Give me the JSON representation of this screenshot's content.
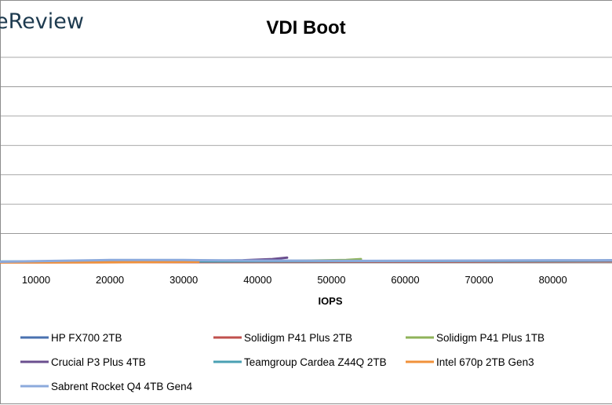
{
  "brand": "eReview",
  "chart_data": {
    "type": "line",
    "title": "VDI Boot",
    "xlabel": "IOPS",
    "ylabel": "",
    "xlim": [
      -5000,
      90000
    ],
    "x_ticks": [
      10000,
      20000,
      30000,
      40000,
      50000,
      60000,
      70000,
      80000
    ],
    "x_partial_tick": "9",
    "ylim": [
      0,
      70
    ],
    "y_gridlines": [
      10,
      20,
      30,
      40,
      50,
      60,
      70
    ],
    "grid": true,
    "legend_position": "bottom",
    "series": [
      {
        "name": "HP FX700 2TB",
        "color": "#4a72b0",
        "x": [
          -5000,
          10000,
          30000,
          50000,
          70000,
          85000,
          90000
        ],
        "y": [
          0.3,
          0.3,
          0.4,
          0.5,
          0.6,
          0.8,
          1.0
        ]
      },
      {
        "name": "Solidigm P41 Plus 2TB",
        "color": "#c0504d",
        "x": [
          -5000,
          10000,
          30000,
          50000,
          70000,
          90000
        ],
        "y": [
          0.2,
          0.2,
          0.3,
          0.4,
          0.5,
          0.6
        ]
      },
      {
        "name": "Solidigm P41 Plus 1TB",
        "color": "#8fb35a",
        "x": [
          -5000,
          10000,
          30000,
          45000,
          52000,
          54000
        ],
        "y": [
          0.3,
          0.4,
          0.5,
          0.7,
          1.0,
          1.3
        ]
      },
      {
        "name": "Crucial P3 Plus 4TB",
        "color": "#6b4f8f",
        "x": [
          -5000,
          10000,
          20000,
          30000,
          38000,
          42000,
          44000
        ],
        "y": [
          0.3,
          0.4,
          0.5,
          0.6,
          0.9,
          1.3,
          1.8
        ]
      },
      {
        "name": "Teamgroup Cardea Z44Q 2TB",
        "color": "#4aa0b3",
        "x": [
          -5000,
          10000,
          30000,
          50000,
          70000,
          90000
        ],
        "y": [
          0.4,
          0.5,
          0.5,
          0.6,
          0.7,
          0.8
        ]
      },
      {
        "name": "Intel 670p 2TB Gen3",
        "color": "#f0913a",
        "x": [
          -5000,
          10000,
          25000,
          32000
        ],
        "y": [
          0.2,
          0.2,
          0.3,
          0.4
        ]
      },
      {
        "name": "Sabrent Rocket Q4 4TB Gen4",
        "color": "#8caadc",
        "x": [
          2000,
          10000,
          20000,
          30000,
          40000,
          55000,
          70000,
          80000,
          90000
        ],
        "y": [
          0.3,
          0.6,
          1.0,
          1.0,
          0.8,
          0.7,
          0.8,
          0.9,
          0.9
        ]
      }
    ]
  }
}
